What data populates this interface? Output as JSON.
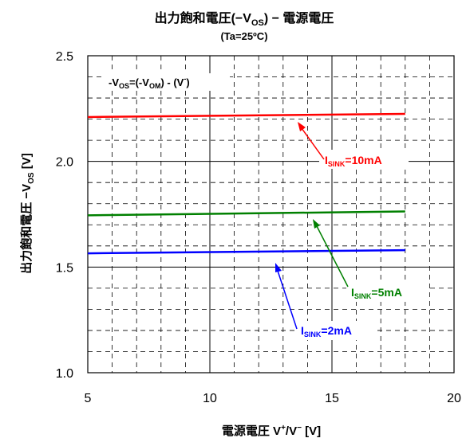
{
  "chart_data": {
    "type": "line",
    "title_parts": {
      "pre": "出力飽和電圧(−V",
      "sub": "OS",
      "post": ") − 電源電圧"
    },
    "subtitle": "(Ta=25ºC)",
    "xlabel_parts": {
      "pre": "電源電圧 V",
      "sup1": "+",
      "mid": "/V",
      "sup2": "−",
      "post": " [V]"
    },
    "ylabel_parts": {
      "pre": "出力飽和電圧 −V",
      "sub": "OS",
      "post": " [V]"
    },
    "formula_parts": {
      "p1": "-V",
      "s1": "OS",
      "p2": "=(-V",
      "s2": "OM",
      "p3": ") - (V",
      "sup": "-",
      "p4": ")"
    },
    "x_ticks": [
      "5",
      "10",
      "15",
      "20"
    ],
    "y_ticks": [
      "1.0",
      "1.5",
      "2.0",
      "2.5"
    ],
    "xlim": [
      5,
      20
    ],
    "ylim": [
      1.0,
      2.5
    ],
    "grid": true,
    "series": [
      {
        "name_parts": {
          "p": "I",
          "s": "SINK",
          "v": "=10mA"
        },
        "color": "#ff0000",
        "x": [
          5,
          18
        ],
        "y": [
          2.21,
          2.225
        ]
      },
      {
        "name_parts": {
          "p": "I",
          "s": "SINK",
          "v": "=5mA"
        },
        "color": "#008000",
        "x": [
          5,
          18
        ],
        "y": [
          1.745,
          1.763
        ]
      },
      {
        "name_parts": {
          "p": "I",
          "s": "SINK",
          "v": "=2mA"
        },
        "color": "#0000ff",
        "x": [
          5,
          18
        ],
        "y": [
          1.565,
          1.58
        ]
      }
    ]
  }
}
